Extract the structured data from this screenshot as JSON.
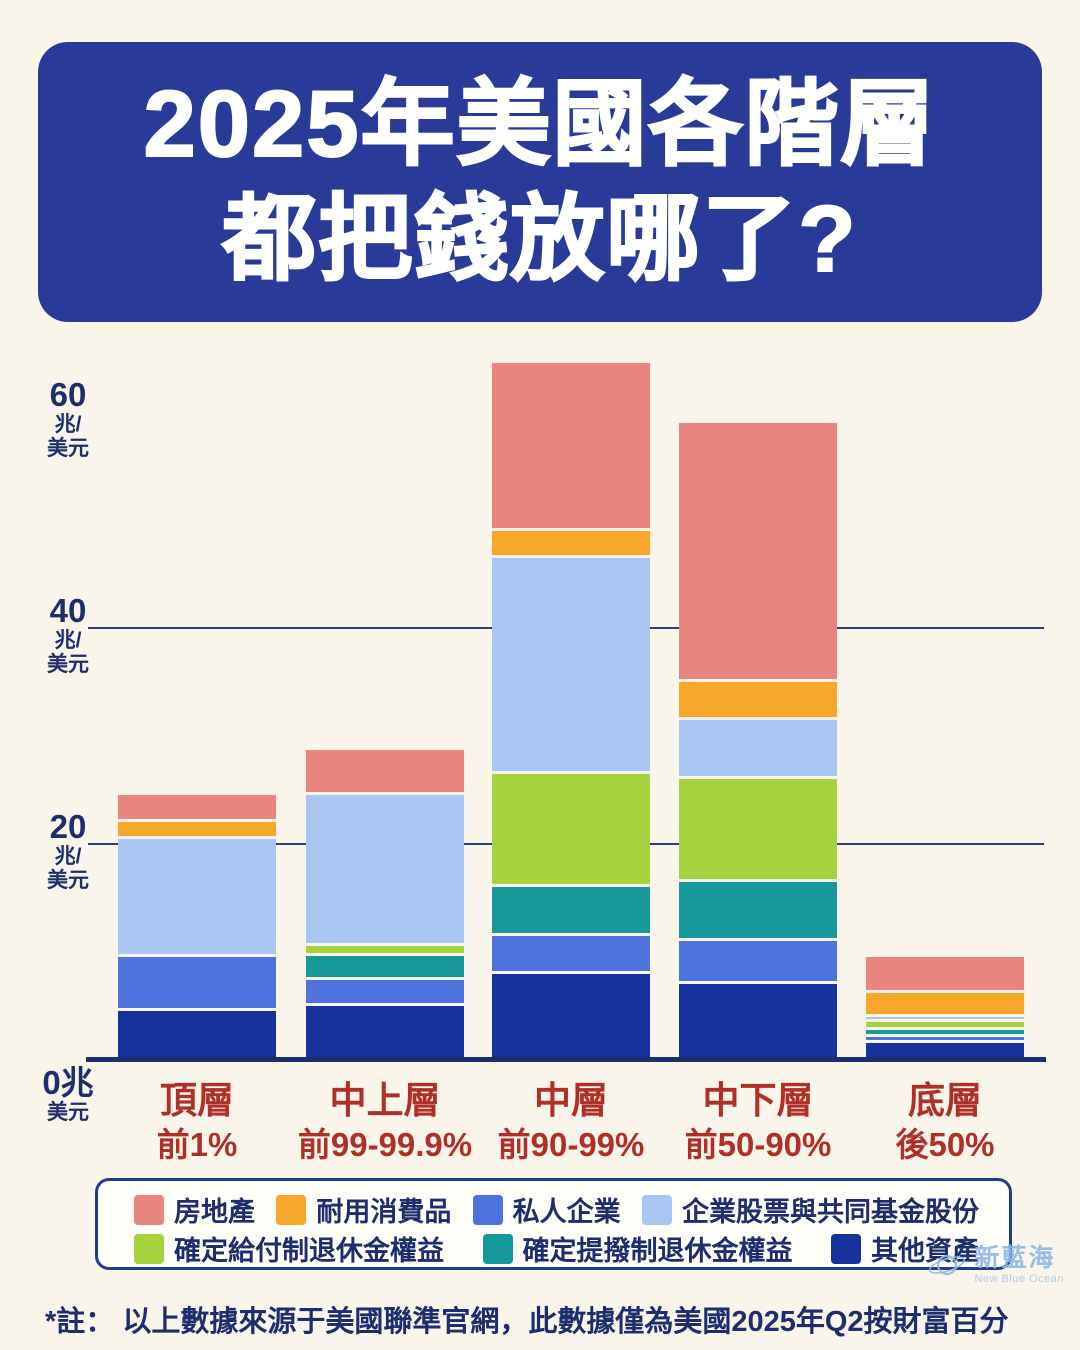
{
  "title": {
    "line1": "2025年美國各階層",
    "line2": "都把錢放哪了?"
  },
  "chart_data": {
    "type": "bar",
    "stacked": true,
    "title": "2025年美國各階層都把錢放哪了?",
    "unit": "兆美元 (trillion USD)",
    "ylim": [
      0,
      66
    ],
    "grid": "horizontal",
    "gridlines": [
      20,
      40
    ],
    "legend_position": "bottom",
    "yticks": [
      {
        "value": 60,
        "lines": [
          "60",
          "兆/",
          "美元"
        ]
      },
      {
        "value": 40,
        "lines": [
          "40",
          "兆/",
          "美元"
        ]
      },
      {
        "value": 20,
        "lines": [
          "20",
          "兆/",
          "美元"
        ]
      },
      {
        "value": 0,
        "lines": [
          "0兆",
          "美元"
        ]
      }
    ],
    "categories": [
      {
        "name": "頂層",
        "range": "前1%"
      },
      {
        "name": "中上層",
        "range": "前99-99.9%"
      },
      {
        "name": "中層",
        "range": "前90-99%"
      },
      {
        "name": "中下層",
        "range": "前50-90%"
      },
      {
        "name": "底層",
        "range": "後50%"
      }
    ],
    "totals": [
      24.5,
      28.7,
      64.5,
      59,
      9.5
    ],
    "series": [
      {
        "name": "其他資產",
        "color": "#16339d",
        "values": [
          4.5,
          5,
          8,
          7,
          1.6
        ]
      },
      {
        "name": "私人企業",
        "color": "#4f73dc",
        "values": [
          5,
          2.4,
          3.5,
          4,
          0.5
        ]
      },
      {
        "name": "確定提撥制退休金權益",
        "color": "#17989b",
        "values": [
          0,
          2.2,
          4.5,
          5.5,
          0.7
        ]
      },
      {
        "name": "確定給付制退休金權益",
        "color": "#a6d23d",
        "values": [
          0,
          1,
          10.5,
          9.5,
          0.7
        ]
      },
      {
        "name": "企業股票與共同基金股份",
        "color": "#a9c6f2",
        "values": [
          11,
          13.9,
          20,
          5.5,
          0.5
        ]
      },
      {
        "name": "耐用消費品",
        "color": "#f7a82b",
        "values": [
          1.5,
          0,
          2.5,
          3.5,
          2.2
        ]
      },
      {
        "name": "房地產",
        "color": "#e88580",
        "values": [
          2.5,
          4.2,
          15.5,
          24,
          3.3
        ]
      }
    ]
  },
  "legend": {
    "rows": [
      [
        {
          "label": "房地產",
          "color": "#e88580"
        },
        {
          "label": "耐用消費品",
          "color": "#f7a82b"
        },
        {
          "label": "私人企業",
          "color": "#4f73dc"
        },
        {
          "label": "企業股票與共同基金股份",
          "color": "#a9c6f2"
        }
      ],
      [
        {
          "label": "確定給付制退休金權益",
          "color": "#a6d23d"
        },
        {
          "label": "確定提撥制退休金權益",
          "color": "#17989b"
        },
        {
          "label": "其他資產",
          "color": "#16339d"
        }
      ]
    ]
  },
  "footnote": "*註： 以上數據來源于美國聯準官網，此數據僅為美國2025年Q2按財富百分",
  "watermark": {
    "zh": "新藍海",
    "en": "New Blue Ocean"
  },
  "colors": {
    "background": "#f9f5ea",
    "banner": "#2a3a99",
    "axis_text": "#1e2d6e",
    "category_label": "#b03028",
    "gridline": "#2f3f72",
    "legend_border": "#233b8f"
  }
}
